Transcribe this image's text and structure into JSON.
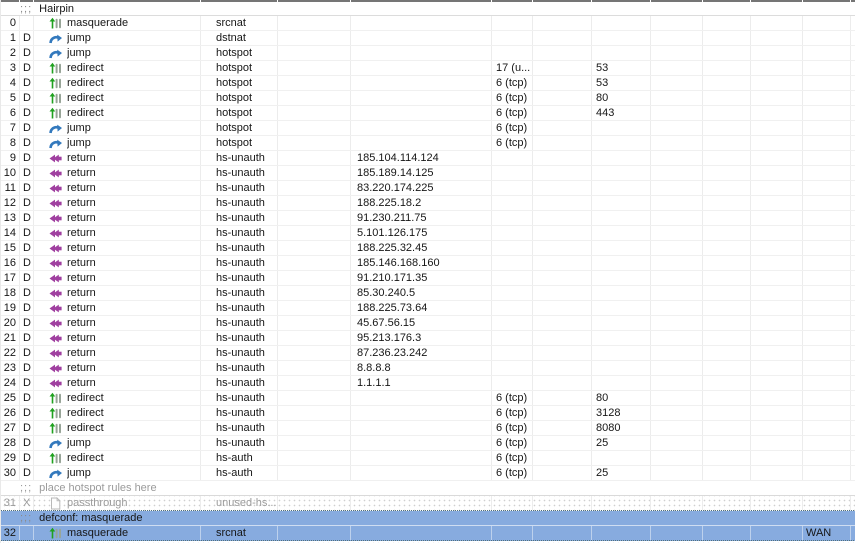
{
  "colors": {
    "selection_blue": "#87abdf",
    "disabled_text": "#9b9b9b",
    "comment_prefix_gray": "#8c8c8c",
    "grid_line": "#ececec",
    "nat_icon_green": "#1fa11f",
    "nat_icon_bar_gray": "#98a598",
    "jump_icon_blue": "#3379bd",
    "return_icon_purple": "#a040a0",
    "passthrough_icon_gray": "#b8b8b8",
    "dotted_border": "#50707c"
  },
  "comment_prefix": ";;;",
  "rows": [
    {
      "type": "comment",
      "text": "Hairpin"
    },
    {
      "type": "rule",
      "num": "0",
      "flags": "",
      "icon": "nat-icon",
      "action": "masquerade",
      "chain": "srcnat"
    },
    {
      "type": "rule",
      "num": "1",
      "flags": "D",
      "icon": "jump-icon",
      "action": "jump",
      "chain": "dstnat"
    },
    {
      "type": "rule",
      "num": "2",
      "flags": "D",
      "icon": "jump-icon",
      "action": "jump",
      "chain": "hotspot"
    },
    {
      "type": "rule",
      "num": "3",
      "flags": "D",
      "icon": "nat-icon",
      "action": "redirect",
      "chain": "hotspot",
      "protocol": "17 (u...",
      "dst_port": "53"
    },
    {
      "type": "rule",
      "num": "4",
      "flags": "D",
      "icon": "nat-icon",
      "action": "redirect",
      "chain": "hotspot",
      "protocol": "6 (tcp)",
      "dst_port": "53"
    },
    {
      "type": "rule",
      "num": "5",
      "flags": "D",
      "icon": "nat-icon",
      "action": "redirect",
      "chain": "hotspot",
      "protocol": "6 (tcp)",
      "dst_port": "80"
    },
    {
      "type": "rule",
      "num": "6",
      "flags": "D",
      "icon": "nat-icon",
      "action": "redirect",
      "chain": "hotspot",
      "protocol": "6 (tcp)",
      "dst_port": "443"
    },
    {
      "type": "rule",
      "num": "7",
      "flags": "D",
      "icon": "jump-icon",
      "action": "jump",
      "chain": "hotspot",
      "protocol": "6 (tcp)"
    },
    {
      "type": "rule",
      "num": "8",
      "flags": "D",
      "icon": "jump-icon",
      "action": "jump",
      "chain": "hotspot",
      "protocol": "6 (tcp)"
    },
    {
      "type": "rule",
      "num": "9",
      "flags": "D",
      "icon": "return-icon",
      "action": "return",
      "chain": "hs-unauth",
      "dst_address": "185.104.114.124"
    },
    {
      "type": "rule",
      "num": "10",
      "flags": "D",
      "icon": "return-icon",
      "action": "return",
      "chain": "hs-unauth",
      "dst_address": "185.189.14.125"
    },
    {
      "type": "rule",
      "num": "11",
      "flags": "D",
      "icon": "return-icon",
      "action": "return",
      "chain": "hs-unauth",
      "dst_address": "83.220.174.225"
    },
    {
      "type": "rule",
      "num": "12",
      "flags": "D",
      "icon": "return-icon",
      "action": "return",
      "chain": "hs-unauth",
      "dst_address": "188.225.18.2"
    },
    {
      "type": "rule",
      "num": "13",
      "flags": "D",
      "icon": "return-icon",
      "action": "return",
      "chain": "hs-unauth",
      "dst_address": "91.230.211.75"
    },
    {
      "type": "rule",
      "num": "14",
      "flags": "D",
      "icon": "return-icon",
      "action": "return",
      "chain": "hs-unauth",
      "dst_address": "5.101.126.175"
    },
    {
      "type": "rule",
      "num": "15",
      "flags": "D",
      "icon": "return-icon",
      "action": "return",
      "chain": "hs-unauth",
      "dst_address": "188.225.32.45"
    },
    {
      "type": "rule",
      "num": "16",
      "flags": "D",
      "icon": "return-icon",
      "action": "return",
      "chain": "hs-unauth",
      "dst_address": "185.146.168.160"
    },
    {
      "type": "rule",
      "num": "17",
      "flags": "D",
      "icon": "return-icon",
      "action": "return",
      "chain": "hs-unauth",
      "dst_address": "91.210.171.35"
    },
    {
      "type": "rule",
      "num": "18",
      "flags": "D",
      "icon": "return-icon",
      "action": "return",
      "chain": "hs-unauth",
      "dst_address": "85.30.240.5"
    },
    {
      "type": "rule",
      "num": "19",
      "flags": "D",
      "icon": "return-icon",
      "action": "return",
      "chain": "hs-unauth",
      "dst_address": "188.225.73.64"
    },
    {
      "type": "rule",
      "num": "20",
      "flags": "D",
      "icon": "return-icon",
      "action": "return",
      "chain": "hs-unauth",
      "dst_address": "45.67.56.15"
    },
    {
      "type": "rule",
      "num": "21",
      "flags": "D",
      "icon": "return-icon",
      "action": "return",
      "chain": "hs-unauth",
      "dst_address": "95.213.176.3"
    },
    {
      "type": "rule",
      "num": "22",
      "flags": "D",
      "icon": "return-icon",
      "action": "return",
      "chain": "hs-unauth",
      "dst_address": "87.236.23.242"
    },
    {
      "type": "rule",
      "num": "23",
      "flags": "D",
      "icon": "return-icon",
      "action": "return",
      "chain": "hs-unauth",
      "dst_address": "8.8.8.8"
    },
    {
      "type": "rule",
      "num": "24",
      "flags": "D",
      "icon": "return-icon",
      "action": "return",
      "chain": "hs-unauth",
      "dst_address": "1.1.1.1"
    },
    {
      "type": "rule",
      "num": "25",
      "flags": "D",
      "icon": "nat-icon",
      "action": "redirect",
      "chain": "hs-unauth",
      "protocol": "6 (tcp)",
      "dst_port": "80"
    },
    {
      "type": "rule",
      "num": "26",
      "flags": "D",
      "icon": "nat-icon",
      "action": "redirect",
      "chain": "hs-unauth",
      "protocol": "6 (tcp)",
      "dst_port": "3128"
    },
    {
      "type": "rule",
      "num": "27",
      "flags": "D",
      "icon": "nat-icon",
      "action": "redirect",
      "chain": "hs-unauth",
      "protocol": "6 (tcp)",
      "dst_port": "8080"
    },
    {
      "type": "rule",
      "num": "28",
      "flags": "D",
      "icon": "jump-icon",
      "action": "jump",
      "chain": "hs-unauth",
      "protocol": "6 (tcp)",
      "dst_port": "25"
    },
    {
      "type": "rule",
      "num": "29",
      "flags": "D",
      "icon": "nat-icon",
      "action": "redirect",
      "chain": "hs-auth",
      "protocol": "6 (tcp)"
    },
    {
      "type": "rule",
      "num": "30",
      "flags": "D",
      "icon": "jump-icon",
      "action": "jump",
      "chain": "hs-auth",
      "protocol": "6 (tcp)",
      "dst_port": "25"
    },
    {
      "type": "comment",
      "text": "place hotspot rules here",
      "muted": true
    },
    {
      "type": "rule",
      "num": "31",
      "flags": "X",
      "icon": "passthrough-icon",
      "action": "passthrough",
      "chain": "unused-hs...",
      "disabled": true,
      "dotted_bottom": true
    },
    {
      "type": "comment",
      "text": "defconf: masquerade",
      "selected": true
    },
    {
      "type": "rule",
      "num": "32",
      "flags": "",
      "icon": "nat-icon",
      "action": "masquerade",
      "chain": "srcnat",
      "out_if_list": "WAN",
      "selected": true,
      "dotted_bottom": true
    }
  ]
}
